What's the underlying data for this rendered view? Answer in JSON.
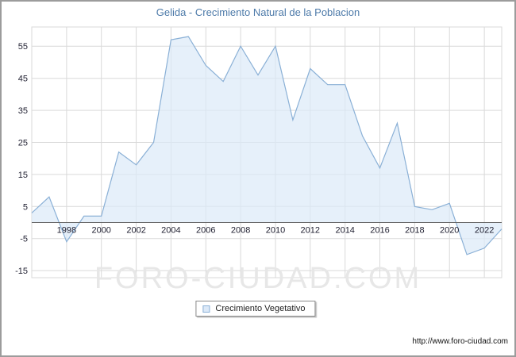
{
  "title": "Gelida - Crecimiento Natural de la Poblacion",
  "legend": {
    "label": "Crecimiento Vegetativo"
  },
  "watermark": "FORO-CIUDAD.COM",
  "footer": {
    "url": "http://www.foro-ciudad.com"
  },
  "chart_data": {
    "type": "area",
    "title": "Gelida - Crecimiento Natural de la Poblacion",
    "series_name": "Crecimiento Vegetativo",
    "x": [
      1996,
      1997,
      1998,
      1999,
      2000,
      2001,
      2002,
      2003,
      2004,
      2005,
      2006,
      2007,
      2008,
      2009,
      2010,
      2011,
      2012,
      2013,
      2014,
      2015,
      2016,
      2017,
      2018,
      2019,
      2020,
      2021,
      2022,
      2023
    ],
    "series": [
      {
        "name": "Crecimiento Vegetativo",
        "values": [
          3,
          8,
          -6,
          2,
          2,
          22,
          18,
          25,
          57,
          58,
          49,
          44,
          55,
          46,
          55,
          32,
          48,
          43,
          43,
          27,
          17,
          31,
          5,
          4,
          6,
          -10,
          -8,
          -2
        ]
      }
    ],
    "baseline": 0,
    "xlim": [
      1996,
      2023
    ],
    "ylim": [
      -17.2,
      61
    ],
    "yticks": [
      -15,
      -5,
      5,
      15,
      25,
      35,
      45,
      55
    ],
    "xticks": [
      1998,
      2000,
      2002,
      2004,
      2006,
      2008,
      2010,
      2012,
      2014,
      2016,
      2018,
      2020,
      2022
    ],
    "grid": true,
    "legend_position": "bottom",
    "colors": {
      "fill": "#dce9f8",
      "stroke": "#8ab0d6",
      "grid": "#d9d9d9",
      "zero_line": "#666666",
      "tick": "#222233",
      "title": "#4d7aa9",
      "watermark": "#e7e7e7"
    }
  }
}
